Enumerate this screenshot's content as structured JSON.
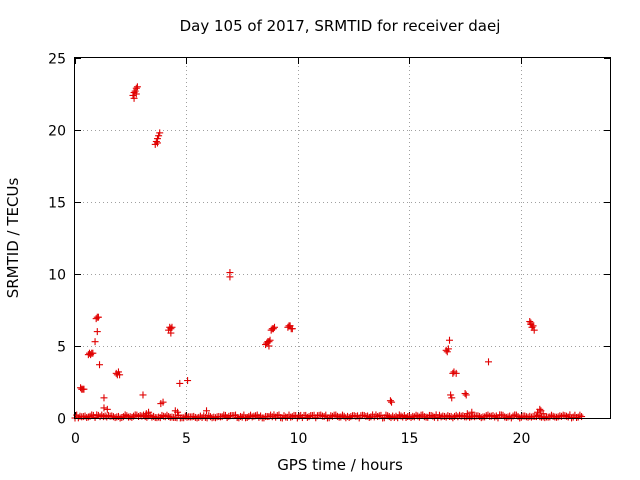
{
  "chart_data": {
    "type": "scatter",
    "title": "Day 105 of 2017, SRMTID for receiver daej",
    "xlabel": "GPS time / hours",
    "ylabel": "SRMTID / TECUs",
    "xlim": [
      0,
      24
    ],
    "ylim": [
      0,
      25
    ],
    "xticks": [
      0,
      5,
      10,
      15,
      20
    ],
    "xtick_labels": [
      "0",
      "5",
      "10",
      "15",
      "20"
    ],
    "yticks": [
      0,
      5,
      10,
      15,
      20,
      25
    ],
    "ytick_labels": [
      "0",
      "5",
      "10",
      "15",
      "20",
      "25"
    ],
    "grid": true,
    "marker": "+",
    "series": [
      {
        "name": "SRMTID",
        "color": "#e00000",
        "points": [
          [
            0.25,
            2.1
          ],
          [
            0.3,
            2.0
          ],
          [
            0.35,
            2.0
          ],
          [
            0.4,
            2.0
          ],
          [
            0.6,
            4.4
          ],
          [
            0.65,
            4.5
          ],
          [
            0.7,
            4.4
          ],
          [
            0.75,
            4.5
          ],
          [
            0.8,
            4.5
          ],
          [
            0.9,
            5.3
          ],
          [
            0.95,
            6.9
          ],
          [
            1.0,
            7.0
          ],
          [
            1.05,
            7.0
          ],
          [
            1.0,
            6.0
          ],
          [
            1.1,
            3.7
          ],
          [
            1.3,
            1.4
          ],
          [
            1.3,
            0.7
          ],
          [
            1.45,
            0.6
          ],
          [
            1.85,
            3.1
          ],
          [
            1.9,
            3.0
          ],
          [
            1.95,
            3.2
          ],
          [
            2.0,
            3.0
          ],
          [
            2.6,
            22.4
          ],
          [
            2.65,
            22.6
          ],
          [
            2.7,
            22.7
          ],
          [
            2.75,
            22.9
          ],
          [
            2.8,
            23.0
          ],
          [
            2.65,
            22.2
          ],
          [
            2.75,
            22.5
          ],
          [
            3.05,
            1.6
          ],
          [
            3.2,
            0.3
          ],
          [
            3.3,
            0.4
          ],
          [
            3.6,
            19.0
          ],
          [
            3.65,
            19.2
          ],
          [
            3.7,
            19.4
          ],
          [
            3.75,
            19.6
          ],
          [
            3.8,
            19.8
          ],
          [
            3.7,
            19.1
          ],
          [
            3.85,
            1.0
          ],
          [
            3.95,
            1.1
          ],
          [
            4.2,
            6.1
          ],
          [
            4.25,
            6.3
          ],
          [
            4.3,
            6.2
          ],
          [
            4.35,
            6.3
          ],
          [
            4.3,
            5.9
          ],
          [
            4.5,
            0.5
          ],
          [
            4.6,
            0.4
          ],
          [
            4.7,
            2.4
          ],
          [
            5.05,
            2.6
          ],
          [
            5.9,
            0.5
          ],
          [
            6.95,
            10.1
          ],
          [
            6.95,
            9.8
          ],
          [
            8.55,
            5.1
          ],
          [
            8.6,
            5.2
          ],
          [
            8.65,
            5.3
          ],
          [
            8.7,
            5.3
          ],
          [
            8.75,
            5.4
          ],
          [
            8.7,
            5.0
          ],
          [
            8.8,
            6.1
          ],
          [
            8.85,
            6.2
          ],
          [
            8.9,
            6.2
          ],
          [
            8.95,
            6.3
          ],
          [
            9.55,
            6.3
          ],
          [
            9.6,
            6.4
          ],
          [
            9.65,
            6.4
          ],
          [
            9.7,
            6.2
          ],
          [
            9.75,
            6.2
          ],
          [
            14.15,
            1.2
          ],
          [
            14.2,
            1.1
          ],
          [
            16.65,
            4.7
          ],
          [
            16.7,
            4.6
          ],
          [
            16.75,
            4.8
          ],
          [
            16.8,
            5.4
          ],
          [
            16.85,
            1.6
          ],
          [
            16.9,
            1.4
          ],
          [
            16.95,
            3.1
          ],
          [
            17.0,
            3.2
          ],
          [
            17.1,
            3.1
          ],
          [
            17.5,
            1.7
          ],
          [
            17.55,
            1.6
          ],
          [
            18.55,
            3.9
          ],
          [
            20.4,
            6.7
          ],
          [
            20.45,
            6.5
          ],
          [
            20.5,
            6.3
          ],
          [
            20.55,
            6.4
          ],
          [
            20.6,
            6.1
          ],
          [
            20.45,
            6.6
          ],
          [
            20.75,
            0.4
          ],
          [
            20.85,
            0.6
          ],
          [
            20.9,
            0.5
          ],
          [
            21.0,
            0.3
          ],
          [
            17.8,
            0.4
          ],
          [
            17.6,
            0.3
          ]
        ],
        "baseline": {
          "start": 0.0,
          "end": 22.75,
          "step": 0.075,
          "min": 0.0,
          "max": 0.22
        }
      }
    ]
  }
}
